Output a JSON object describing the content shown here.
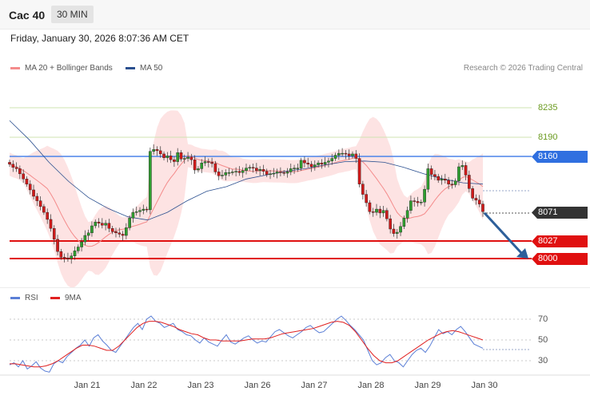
{
  "header": {
    "symbol": "Cac 40",
    "timeframe": "30 MIN"
  },
  "date_line": "Friday, January 30, 2026 8:07:36 AM CET",
  "legend_main": [
    {
      "label": "MA 20 + Bollinger Bands",
      "color": "#f48b8b"
    },
    {
      "label": "MA 50",
      "color": "#2a4f8f"
    }
  ],
  "credit": "Research © 2026 Trading Central",
  "legend_rsi": [
    {
      "label": "RSI",
      "color": "#5b7fd6"
    },
    {
      "label": "9MA",
      "color": "#e02020"
    }
  ],
  "chart_data": [
    {
      "type": "candlestick",
      "levels": [
        {
          "value": 8235,
          "label": "8235",
          "kind": "target-line",
          "color": "#6a9a1f"
        },
        {
          "value": 8190,
          "label": "8190",
          "kind": "target-line",
          "color": "#6a9a1f"
        },
        {
          "value": 8160,
          "label": "8160",
          "kind": "resistance",
          "color": "#2f6fe0"
        },
        {
          "value": 8071,
          "label": "8071",
          "kind": "last-price",
          "color": "#333333"
        },
        {
          "value": 8027,
          "label": "8027",
          "kind": "support",
          "color": "#e01010"
        },
        {
          "value": 8000,
          "label": "8000",
          "kind": "support",
          "color": "#e01010"
        }
      ],
      "x_labels": [
        "Jan 21",
        "Jan 22",
        "Jan 23",
        "Jan 26",
        "Jan 27",
        "Jan 28",
        "Jan 29",
        "Jan 30"
      ],
      "close_series": [
        8147,
        8142,
        8140,
        8132,
        8124,
        8116,
        8107,
        8097,
        8090,
        8081,
        8072,
        8061,
        8047,
        8030,
        8011,
        8002,
        8001,
        8000,
        8004,
        8012,
        8018,
        8026,
        8036,
        8040,
        8051,
        8057,
        8055,
        8052,
        8055,
        8047,
        8042,
        8040,
        8038,
        8036,
        8048,
        8063,
        8072,
        8073,
        8075,
        8077,
        8076,
        8167,
        8170,
        8168,
        8163,
        8157,
        8160,
        8154,
        8151,
        8165,
        8155,
        8156,
        8158,
        8154,
        8138,
        8140,
        8149,
        8151,
        8150,
        8148,
        8135,
        8129,
        8130,
        8134,
        8134,
        8135,
        8136,
        8134,
        8137,
        8141,
        8142,
        8141,
        8137,
        8139,
        8136,
        8131,
        8132,
        8133,
        8135,
        8134,
        8133,
        8135,
        8140,
        8141,
        8141,
        8153,
        8149,
        8147,
        8143,
        8146,
        8149,
        8147,
        8150,
        8152,
        8156,
        8161,
        8164,
        8164,
        8163,
        8160,
        8163,
        8156,
        8116,
        8100,
        8087,
        8073,
        8072,
        8077,
        8071,
        8075,
        8062,
        8046,
        8039,
        8041,
        8050,
        8063,
        8075,
        8090,
        8089,
        8087,
        8088,
        8108,
        8140,
        8131,
        8128,
        8122,
        8124,
        8122,
        8116,
        8115,
        8121,
        8143,
        8145,
        8130,
        8109,
        8094,
        8091,
        8085,
        8073
      ],
      "ma50": {
        "start": 8215,
        "points": [
          8215,
          8185,
          8150,
          8120,
          8095,
          8078,
          8065,
          8060,
          8072,
          8090,
          8105,
          8112,
          8124,
          8130,
          8136,
          8140,
          8146,
          8151,
          8152,
          8150,
          8142,
          8132,
          8124,
          8118,
          8116
        ]
      },
      "bollinger": {
        "upper_peak": 8175,
        "lower_trough": 7985
      },
      "forecast_arrow": {
        "from": 8071,
        "to": 8000
      }
    },
    {
      "type": "line",
      "name": "RSI",
      "y_ticks": [
        70,
        50,
        30
      ],
      "ylim": [
        20,
        80
      ],
      "series": [
        {
          "name": "RSI",
          "values": [
            26,
            28,
            24,
            30,
            22,
            25,
            29,
            23,
            20,
            19,
            27,
            30,
            28,
            34,
            38,
            42,
            45,
            50,
            44,
            52,
            55,
            49,
            45,
            40,
            38,
            44,
            50,
            56,
            62,
            66,
            60,
            70,
            73,
            68,
            66,
            62,
            64,
            66,
            60,
            58,
            55,
            54,
            50,
            47,
            52,
            48,
            46,
            44,
            50,
            55,
            48,
            46,
            49,
            52,
            54,
            50,
            47,
            49,
            48,
            53,
            58,
            60,
            57,
            54,
            52,
            55,
            58,
            62,
            64,
            60,
            57,
            58,
            62,
            66,
            70,
            73,
            69,
            64,
            60,
            55,
            50,
            40,
            30,
            26,
            28,
            33,
            36,
            30,
            28,
            24,
            30,
            36,
            40,
            42,
            38,
            44,
            52,
            60,
            56,
            58,
            55,
            60,
            63,
            58,
            52,
            46,
            44,
            42
          ]
        },
        {
          "name": "9MA",
          "values": [
            27,
            27,
            26,
            25,
            24,
            24,
            25,
            27,
            30,
            34,
            38,
            42,
            45,
            45,
            44,
            42,
            40,
            40,
            44,
            50,
            56,
            62,
            66,
            68,
            68,
            67,
            65,
            63,
            60,
            58,
            56,
            55,
            52,
            50,
            50,
            49,
            49,
            49,
            49,
            50,
            51,
            51,
            51,
            52,
            54,
            56,
            57,
            58,
            59,
            60,
            61,
            63,
            65,
            67,
            68,
            67,
            64,
            58,
            50,
            42,
            35,
            30,
            28,
            28,
            30,
            34,
            38,
            42,
            46,
            50,
            53,
            56,
            58,
            59,
            58,
            56,
            54,
            52,
            50
          ]
        }
      ]
    }
  ]
}
